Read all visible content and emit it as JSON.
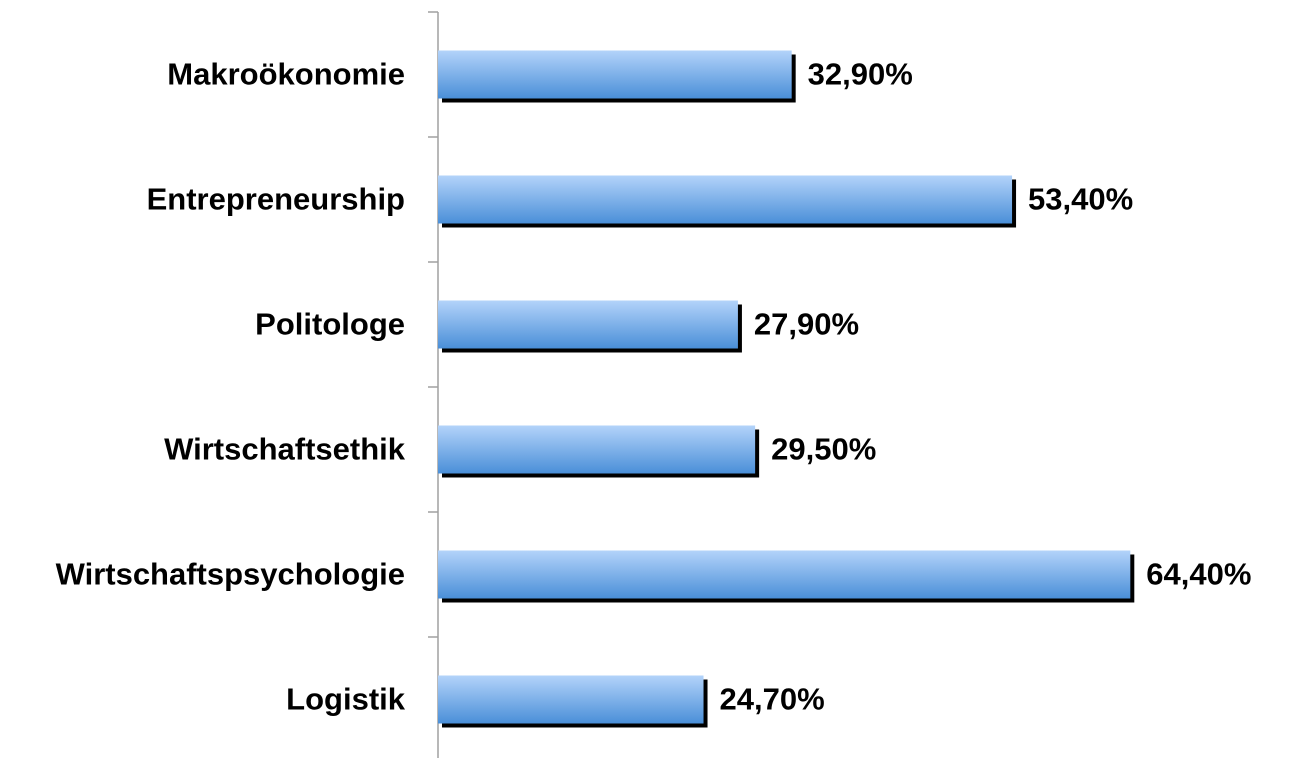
{
  "chart_data": {
    "type": "bar",
    "orientation": "horizontal",
    "categories": [
      "Makroökonomie",
      "Entrepreneurship",
      "Politologe",
      "Wirtschaftsethik",
      "Wirtschaftspsychologie",
      "Logistik"
    ],
    "values": [
      32.9,
      53.4,
      27.9,
      29.5,
      64.4,
      24.7
    ],
    "value_labels": [
      "32,90%",
      "53,40%",
      "27,90%",
      "29,50%",
      "64,40%",
      "24,70%"
    ],
    "color": "#4a8fd8"
  }
}
